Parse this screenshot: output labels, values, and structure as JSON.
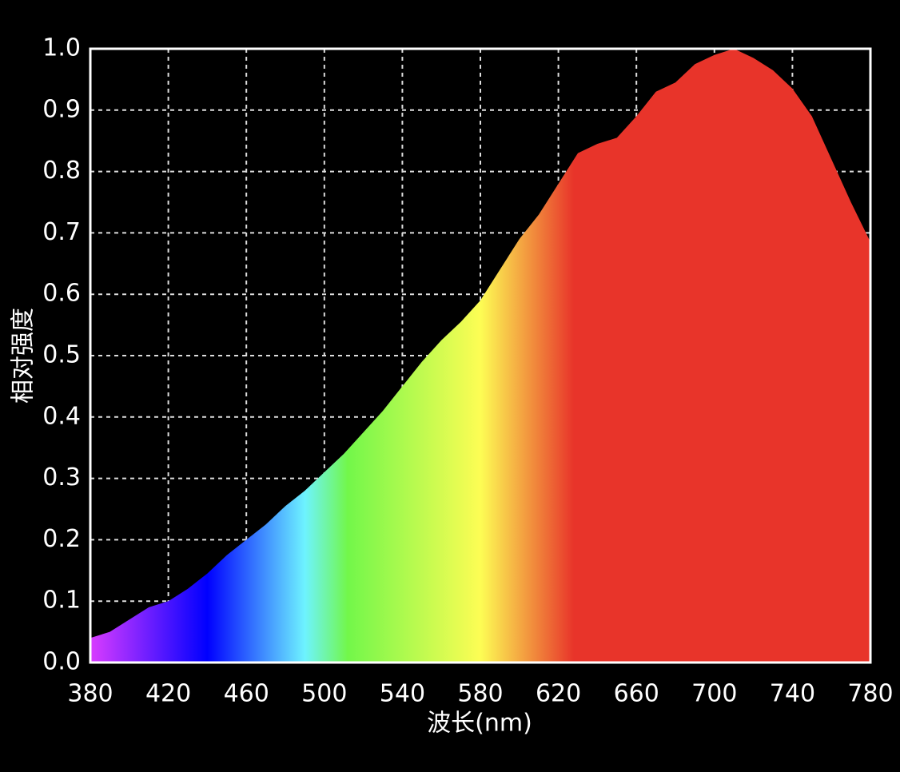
{
  "chart_data": {
    "type": "area",
    "xlabel": "波长(nm)",
    "ylabel": "相对强度",
    "x": [
      380,
      390,
      400,
      410,
      420,
      430,
      440,
      450,
      460,
      470,
      480,
      490,
      500,
      510,
      520,
      530,
      540,
      550,
      560,
      570,
      580,
      590,
      600,
      610,
      620,
      630,
      640,
      650,
      660,
      670,
      680,
      690,
      700,
      710,
      720,
      730,
      740,
      750,
      760,
      770,
      780
    ],
    "values": [
      0.04,
      0.05,
      0.07,
      0.09,
      0.1,
      0.12,
      0.145,
      0.175,
      0.2,
      0.225,
      0.255,
      0.28,
      0.31,
      0.34,
      0.375,
      0.41,
      0.45,
      0.49,
      0.525,
      0.555,
      0.59,
      0.64,
      0.69,
      0.73,
      0.78,
      0.83,
      0.845,
      0.855,
      0.89,
      0.93,
      0.945,
      0.975,
      0.99,
      1.0,
      0.985,
      0.965,
      0.935,
      0.89,
      0.82,
      0.75,
      0.685
    ],
    "xlim": [
      380,
      780
    ],
    "xticks": [
      380,
      420,
      460,
      500,
      540,
      580,
      620,
      660,
      700,
      740,
      780
    ],
    "ylim": [
      0,
      1
    ],
    "yticks": [
      {
        "value": 0,
        "label": "0.0"
      },
      0.1,
      0.2,
      0.3,
      0.4,
      0.5,
      0.6,
      0.7,
      0.8,
      0.9,
      {
        "value": 1,
        "label": "1.0"
      }
    ],
    "grid": true
  }
}
